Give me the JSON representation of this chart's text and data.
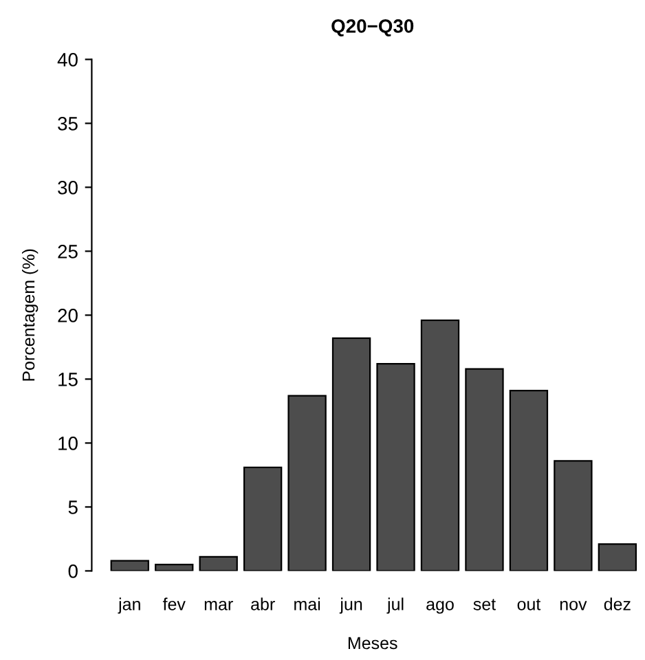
{
  "chart_data": {
    "type": "bar",
    "title": "Q20−Q30",
    "xlabel": "Meses",
    "ylabel": "Porcentagem (%)",
    "categories": [
      "jan",
      "fev",
      "mar",
      "abr",
      "mai",
      "jun",
      "jul",
      "ago",
      "set",
      "out",
      "nov",
      "dez"
    ],
    "values": [
      0.8,
      0.5,
      1.1,
      8.1,
      13.7,
      18.2,
      16.2,
      19.6,
      15.8,
      14.1,
      8.6,
      2.1
    ],
    "color": "#4d4d4d",
    "ylim": [
      0,
      40
    ],
    "yticks": [
      0,
      5,
      10,
      15,
      20,
      25,
      30,
      35,
      40
    ],
    "grid": false
  }
}
